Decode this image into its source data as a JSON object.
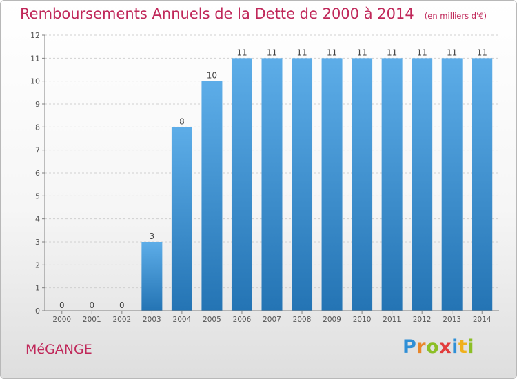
{
  "title": "Remboursements Annuels de la Dette de 2000 à 2014",
  "subtitle": "(en milliers d'€)",
  "place": "MéGANGE",
  "logo": "Proxiti",
  "colors": {
    "title": "#c0285a",
    "bar_light": "#5dade8",
    "bar_dark": "#2474b4",
    "grid": "#d0d0d0",
    "axis": "#808080"
  },
  "chart_data": {
    "type": "bar",
    "categories": [
      "2000",
      "2001",
      "2002",
      "2003",
      "2004",
      "2005",
      "2006",
      "2007",
      "2008",
      "2009",
      "2010",
      "2011",
      "2012",
      "2013",
      "2014"
    ],
    "values": [
      0,
      0,
      0,
      3,
      8,
      10,
      11,
      11,
      11,
      11,
      11,
      11,
      11,
      11,
      11
    ],
    "title": "Remboursements Annuels de la Dette de 2000 à 2014",
    "subtitle": "(en milliers d'€)",
    "xlabel": "",
    "ylabel": "",
    "ylim": [
      0,
      12
    ],
    "yticks": [
      0,
      1,
      2,
      3,
      4,
      5,
      6,
      7,
      8,
      9,
      10,
      11,
      12
    ],
    "grid": true,
    "legend": "none",
    "data_labels": true
  }
}
